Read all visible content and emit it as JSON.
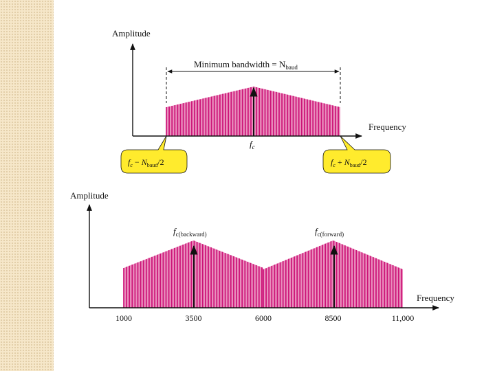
{
  "colors": {
    "bar": "#cc1277",
    "fill": "#e98fbd",
    "callout": "#ffeb2d",
    "side_band": "#f6e7c9",
    "axis": "#111111"
  },
  "top_diagram": {
    "ylabel": "Amplitude",
    "xlabel": "Frequency",
    "bandwidth_label": "Minimum bandwidth = N",
    "bandwidth_sub": "baud",
    "carrier_label": "f",
    "carrier_sub": "c",
    "left_callout": {
      "f": "f",
      "f_sub": "c",
      "op": " − ",
      "n": "N",
      "n_sub": "baud",
      "tail": "/2"
    },
    "right_callout": {
      "f": "f",
      "f_sub": "c",
      "op": " + ",
      "n": "N",
      "n_sub": "baud",
      "tail": "/2"
    }
  },
  "bottom_diagram": {
    "ylabel": "Amplitude",
    "xlabel": "Frequency",
    "backward_label": "f",
    "backward_sub": "c(backward)",
    "forward_label": "f",
    "forward_sub": "c(forward)",
    "tick_labels": [
      "1000",
      "3500",
      "6000",
      "8500",
      "11,000"
    ]
  },
  "chart_data": [
    {
      "type": "spectrum",
      "xlabel": "Frequency",
      "ylabel": "Amplitude",
      "carrier": "fc",
      "band_edges": [
        "fc − Nbaud/2",
        "fc + Nbaud/2"
      ],
      "envelope": "triangular, peak at fc"
    },
    {
      "type": "spectrum",
      "xlabel": "Frequency",
      "ylabel": "Amplitude",
      "x_ticks": [
        1000,
        3500,
        6000,
        8500,
        11000
      ],
      "bands": [
        {
          "name": "fc(backward)",
          "start": 1000,
          "center": 3500,
          "end": 6000
        },
        {
          "name": "fc(forward)",
          "start": 6000,
          "center": 8500,
          "end": 11000
        }
      ]
    }
  ]
}
